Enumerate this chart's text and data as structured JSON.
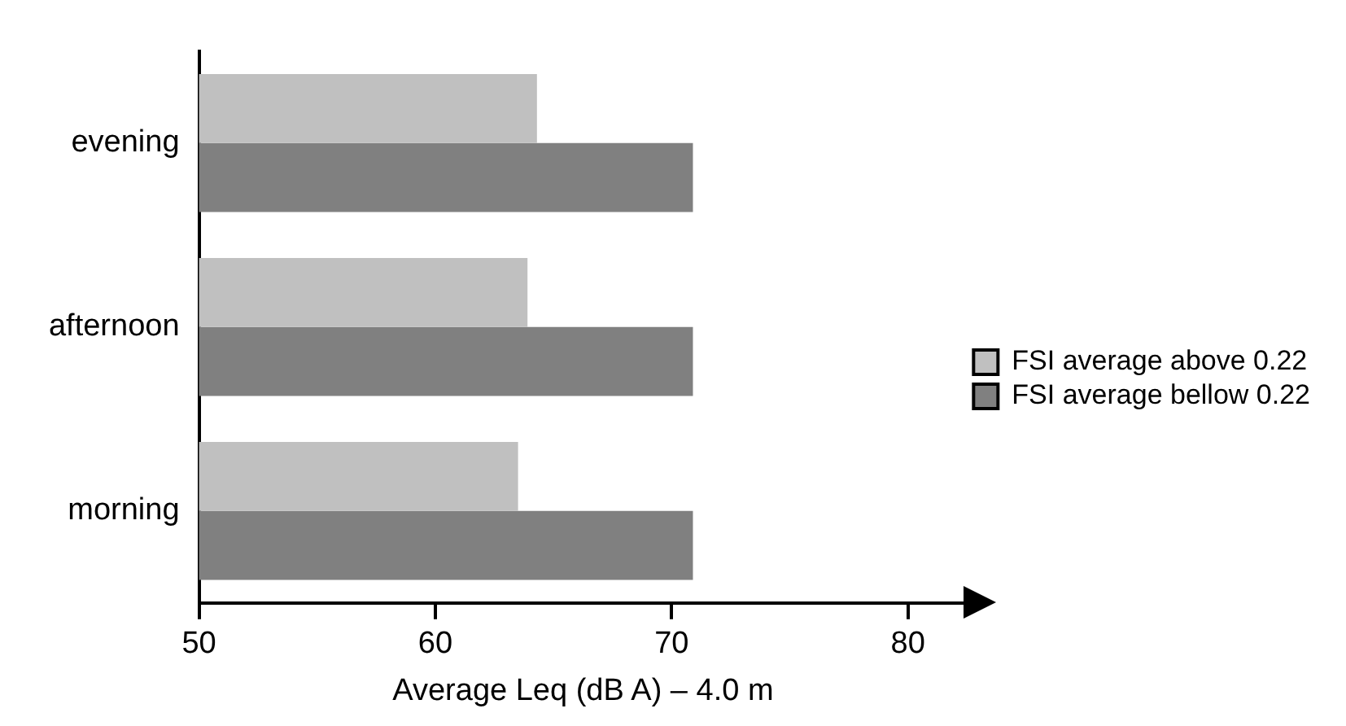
{
  "chart_data": {
    "type": "bar",
    "orientation": "horizontal",
    "xlabel": "Average Leq (dB A) – 4.0 m",
    "categories": [
      "evening",
      "afternoon",
      "morning"
    ],
    "series": [
      {
        "name": "FSI average above 0.22",
        "color": "#c0c0c0",
        "values": [
          64.3,
          63.9,
          63.5
        ]
      },
      {
        "name": "FSI average bellow 0.22",
        "color": "#808080",
        "values": [
          70.9,
          70.9,
          70.9
        ]
      }
    ],
    "xlim": [
      50,
      82.5
    ],
    "xticks": [
      50,
      60,
      70,
      80
    ],
    "grid": false,
    "legend": "right"
  }
}
